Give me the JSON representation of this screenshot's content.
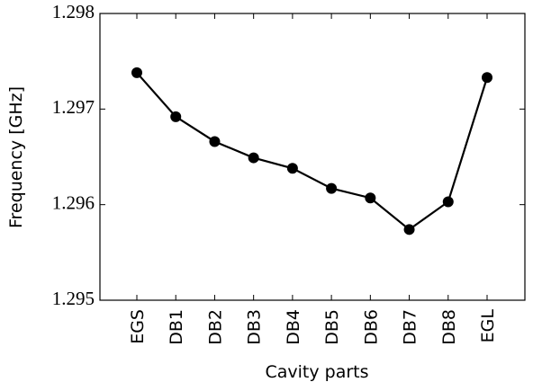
{
  "chart_data": {
    "type": "line",
    "x_label": "Cavity parts",
    "y_label": "Frequency [GHz]",
    "categories": [
      "EGS",
      "DB1",
      "DB2",
      "DB3",
      "DB4",
      "DB5",
      "DB6",
      "DB7",
      "DB8",
      "EGL"
    ],
    "series": [
      {
        "color": "#000000",
        "values": [
          1.29738,
          1.29692,
          1.29666,
          1.29649,
          1.29638,
          1.29617,
          1.29607,
          1.29574,
          1.29603,
          1.29733
        ]
      }
    ],
    "ylim": [
      1.295,
      1.298
    ],
    "yticks": [
      1.295,
      1.296,
      1.297,
      1.298
    ]
  }
}
